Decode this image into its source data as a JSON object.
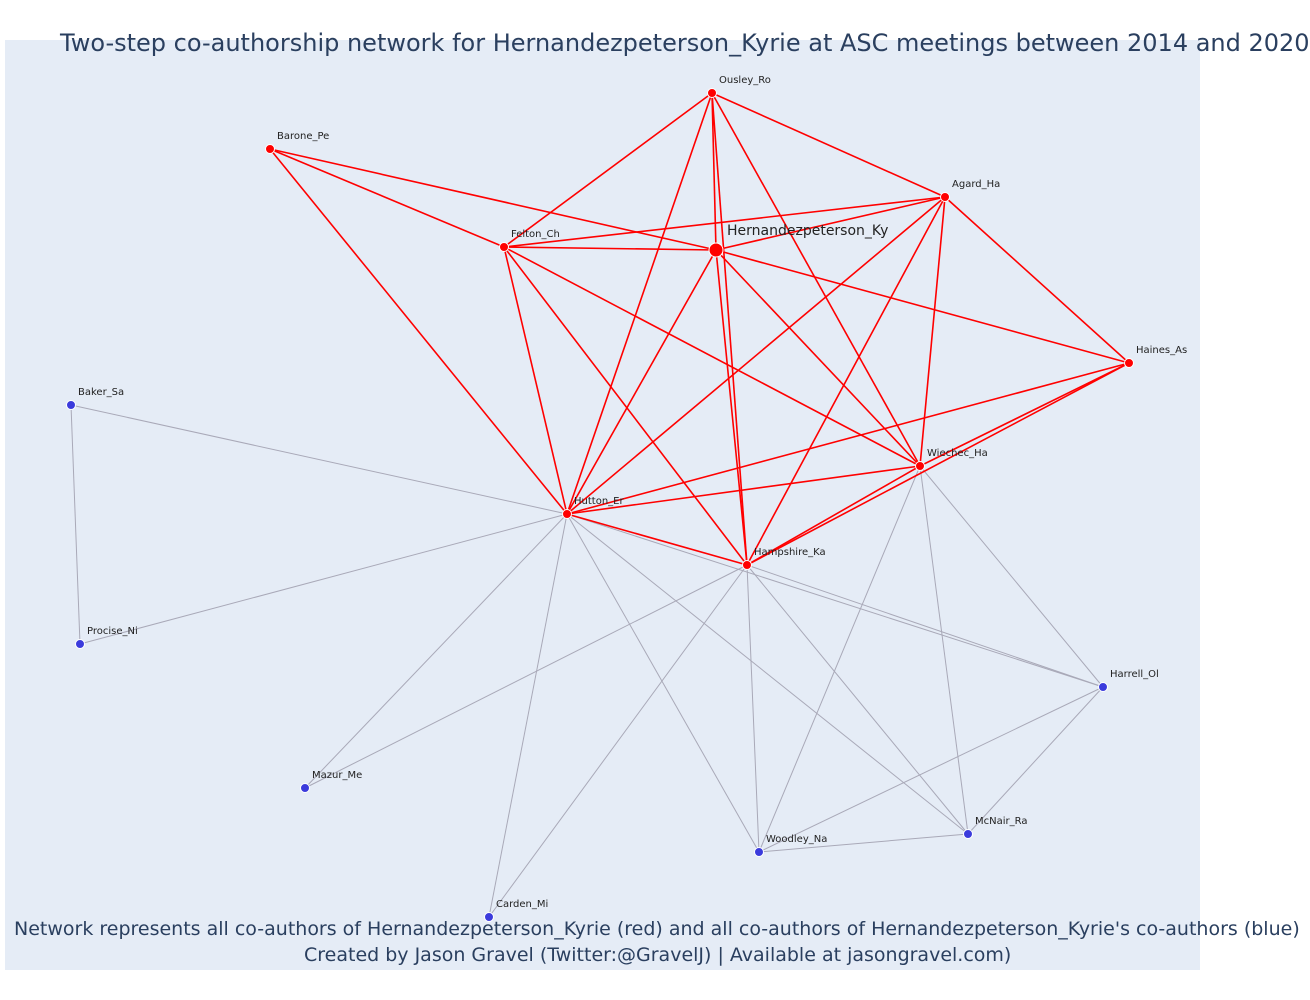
{
  "title": "Two-step co-authorship network for Hernandezpeterson_Kyrie at ASC meetings between 2014 and 2020",
  "caption": {
    "line1": "Network represents all co-authors of Hernandezpeterson_Kyrie (red) and all co-authors of Hernandezpeterson_Kyrie's co-authors (blue)",
    "line2": "Created by Jason Gravel (Twitter:@GravelJ) | Available at jasongravel.com)"
  },
  "colors": {
    "background": "#e5ecf6",
    "first_degree": "#ff0000",
    "second_degree": "#3b3bdc",
    "edge_first": "#ff0000",
    "edge_second": "#a9a9b8",
    "text": "#2a3f5f"
  },
  "chart_data": {
    "type": "network",
    "nodes": [
      {
        "id": "Hernandezpeterson_Ky",
        "group": "focal"
      },
      {
        "id": "Ousley_Ro",
        "group": "first"
      },
      {
        "id": "Barone_Pe",
        "group": "first"
      },
      {
        "id": "Agard_Ha",
        "group": "first"
      },
      {
        "id": "Felton_Ch",
        "group": "first"
      },
      {
        "id": "Haines_As",
        "group": "first"
      },
      {
        "id": "Wiechec_Ha",
        "group": "first"
      },
      {
        "id": "Hutton_Er",
        "group": "first"
      },
      {
        "id": "Hampshire_Ka",
        "group": "first"
      },
      {
        "id": "Baker_Sa",
        "group": "second"
      },
      {
        "id": "Procise_Ni",
        "group": "second"
      },
      {
        "id": "Harrell_Ol",
        "group": "second"
      },
      {
        "id": "Mazur_Me",
        "group": "second"
      },
      {
        "id": "McNair_Ra",
        "group": "second"
      },
      {
        "id": "Woodley_Na",
        "group": "second"
      },
      {
        "id": "Carden_Mi",
        "group": "second"
      }
    ],
    "edges": [
      [
        "Hernandezpeterson_Ky",
        "Ousley_Ro"
      ],
      [
        "Hernandezpeterson_Ky",
        "Barone_Pe"
      ],
      [
        "Hernandezpeterson_Ky",
        "Agard_Ha"
      ],
      [
        "Hernandezpeterson_Ky",
        "Felton_Ch"
      ],
      [
        "Hernandezpeterson_Ky",
        "Haines_As"
      ],
      [
        "Hernandezpeterson_Ky",
        "Wiechec_Ha"
      ],
      [
        "Hernandezpeterson_Ky",
        "Hutton_Er"
      ],
      [
        "Hernandezpeterson_Ky",
        "Hampshire_Ka"
      ],
      [
        "Ousley_Ro",
        "Felton_Ch"
      ],
      [
        "Ousley_Ro",
        "Agard_Ha"
      ],
      [
        "Ousley_Ro",
        "Hutton_Er"
      ],
      [
        "Ousley_Ro",
        "Hampshire_Ka"
      ],
      [
        "Ousley_Ro",
        "Wiechec_Ha"
      ],
      [
        "Barone_Pe",
        "Felton_Ch"
      ],
      [
        "Barone_Pe",
        "Hutton_Er"
      ],
      [
        "Agard_Ha",
        "Felton_Ch"
      ],
      [
        "Agard_Ha",
        "Haines_As"
      ],
      [
        "Agard_Ha",
        "Hutton_Er"
      ],
      [
        "Agard_Ha",
        "Hampshire_Ka"
      ],
      [
        "Agard_Ha",
        "Wiechec_Ha"
      ],
      [
        "Felton_Ch",
        "Hutton_Er"
      ],
      [
        "Felton_Ch",
        "Hampshire_Ka"
      ],
      [
        "Felton_Ch",
        "Wiechec_Ha"
      ],
      [
        "Haines_As",
        "Hutton_Er"
      ],
      [
        "Haines_As",
        "Hampshire_Ka"
      ],
      [
        "Haines_As",
        "Wiechec_Ha"
      ],
      [
        "Hutton_Er",
        "Wiechec_Ha"
      ],
      [
        "Hutton_Er",
        "Hampshire_Ka"
      ],
      [
        "Hampshire_Ka",
        "Wiechec_Ha"
      ],
      [
        "Baker_Sa",
        "Procise_Ni"
      ],
      [
        "Baker_Sa",
        "Hutton_Er"
      ],
      [
        "Procise_Ni",
        "Hutton_Er"
      ],
      [
        "Hutton_Er",
        "Mazur_Me"
      ],
      [
        "Hutton_Er",
        "Carden_Mi"
      ],
      [
        "Hutton_Er",
        "Woodley_Na"
      ],
      [
        "Hutton_Er",
        "McNair_Ra"
      ],
      [
        "Hutton_Er",
        "Harrell_Ol"
      ],
      [
        "Hampshire_Ka",
        "Mazur_Me"
      ],
      [
        "Hampshire_Ka",
        "Carden_Mi"
      ],
      [
        "Hampshire_Ka",
        "Woodley_Na"
      ],
      [
        "Hampshire_Ka",
        "McNair_Ra"
      ],
      [
        "Hampshire_Ka",
        "Harrell_Ol"
      ],
      [
        "Wiechec_Ha",
        "Woodley_Na"
      ],
      [
        "Wiechec_Ha",
        "McNair_Ra"
      ],
      [
        "Wiechec_Ha",
        "Harrell_Ol"
      ],
      [
        "Harrell_Ol",
        "Woodley_Na"
      ],
      [
        "Harrell_Ol",
        "McNair_Ra"
      ],
      [
        "McNair_Ra",
        "Woodley_Na"
      ]
    ]
  }
}
